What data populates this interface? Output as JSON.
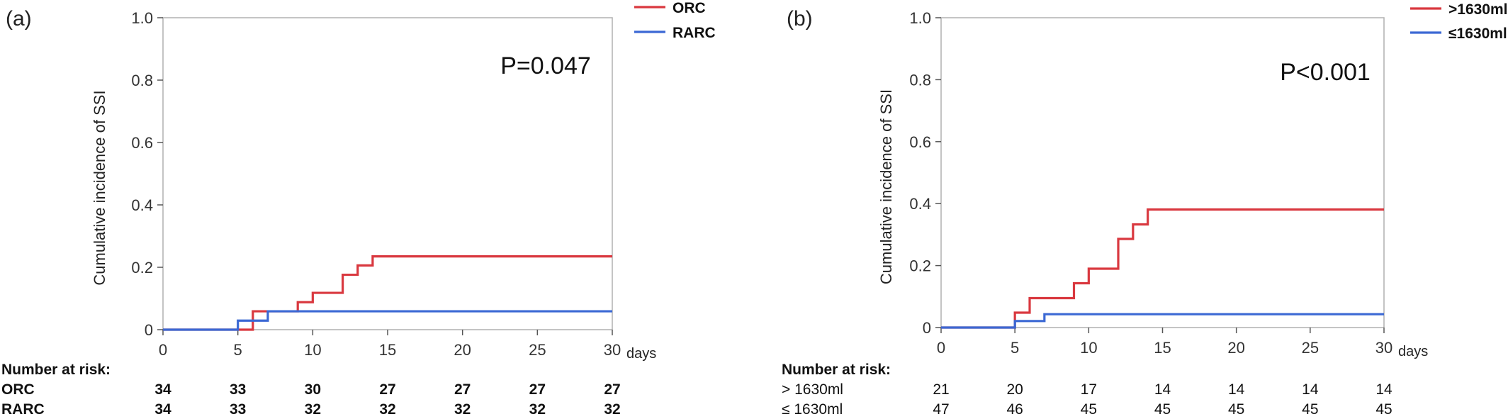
{
  "chart_data": [
    {
      "type": "line",
      "step": true,
      "panel_label": "(a)",
      "ylabel": "Cumulative incidence of SSI",
      "xlabel": "days",
      "xlim": [
        0,
        30
      ],
      "ylim": [
        0,
        1.0
      ],
      "x_ticks": [
        "0",
        "5",
        "10",
        "15",
        "20",
        "25",
        "30"
      ],
      "y_ticks": [
        "0",
        "0.2",
        "0.4",
        "0.6",
        "0.8",
        "1.0"
      ],
      "annotation": "P=0.047",
      "legend_position": "top-right",
      "series": [
        {
          "name": "ORC",
          "color": "#d9383f",
          "x": [
            0,
            6,
            7,
            9,
            10,
            12,
            13,
            14,
            30
          ],
          "y": [
            0,
            0.059,
            0.059,
            0.088,
            0.118,
            0.176,
            0.206,
            0.235,
            0.235
          ]
        },
        {
          "name": "RARC",
          "color": "#3b68d4",
          "x": [
            0,
            5,
            7,
            30
          ],
          "y": [
            0,
            0.029,
            0.059,
            0.059
          ]
        }
      ],
      "risk_table": {
        "title": "Number at risk:",
        "rows": [
          {
            "label": "ORC",
            "values": [
              "34",
              "33",
              "30",
              "27",
              "27",
              "27",
              "27"
            ]
          },
          {
            "label": "RARC",
            "values": [
              "34",
              "33",
              "32",
              "32",
              "32",
              "32",
              "32"
            ]
          }
        ]
      }
    },
    {
      "type": "line",
      "step": true,
      "panel_label": "(b)",
      "ylabel": "Cumulative incidence of SSI",
      "xlabel": "days",
      "xlim": [
        0,
        30
      ],
      "ylim": [
        0,
        1.0
      ],
      "x_ticks": [
        "0",
        "5",
        "10",
        "15",
        "20",
        "25",
        "30"
      ],
      "y_ticks": [
        "0",
        "0.2",
        "0.4",
        "0.6",
        "0.8",
        "1.0"
      ],
      "annotation": "P<0.001",
      "legend_position": "top-right",
      "series": [
        {
          "name": ">1630ml",
          "color": "#d9383f",
          "x": [
            0,
            5,
            6,
            9,
            10,
            12,
            13,
            14,
            30
          ],
          "y": [
            0,
            0.048,
            0.095,
            0.143,
            0.19,
            0.286,
            0.333,
            0.381,
            0.381
          ]
        },
        {
          "name": "≤1630ml",
          "color": "#3b68d4",
          "x": [
            0,
            5,
            7,
            30
          ],
          "y": [
            0,
            0.021,
            0.043,
            0.043
          ]
        }
      ],
      "risk_table": {
        "title": "Number at risk:",
        "rows": [
          {
            "label": "> 1630ml",
            "values": [
              "21",
              "20",
              "17",
              "14",
              "14",
              "14",
              "14"
            ]
          },
          {
            "label": "≤ 1630ml",
            "values": [
              "47",
              "46",
              "45",
              "45",
              "45",
              "45",
              "45"
            ]
          }
        ]
      }
    }
  ]
}
